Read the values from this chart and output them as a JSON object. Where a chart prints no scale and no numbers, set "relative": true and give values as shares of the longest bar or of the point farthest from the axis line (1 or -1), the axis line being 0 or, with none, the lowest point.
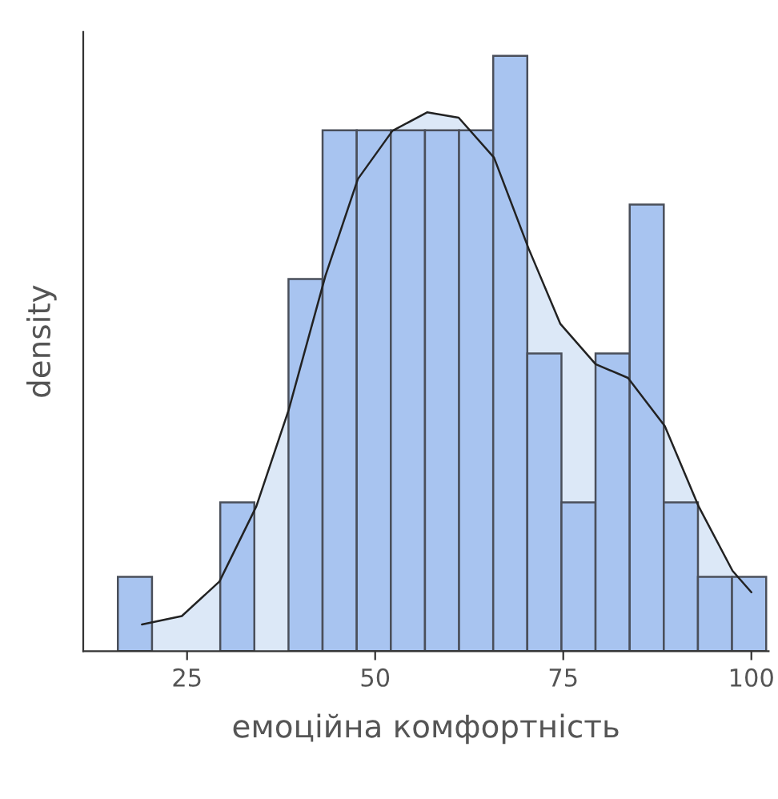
{
  "chart_data": {
    "type": "histogram",
    "xlabel": "емоційна комфортність",
    "ylabel": "density",
    "relative": true,
    "bins": [
      15.8,
      20.34,
      24.87,
      29.41,
      33.94,
      38.48,
      43.01,
      47.55,
      52.08,
      56.62,
      61.15,
      65.69,
      70.22,
      74.76,
      79.29,
      83.83,
      88.36,
      92.9,
      97.43,
      101.97
    ],
    "values": [
      0.125,
      0,
      0,
      0.25,
      0,
      0.625,
      0.875,
      0.875,
      0.875,
      0.875,
      0.875,
      1,
      0.5,
      0.25,
      0.5,
      0.75,
      0.25,
      0.125,
      0.125
    ],
    "color": "#a8c4f0",
    "series": [
      {
        "type": "area",
        "color": "#dce8f7",
        "x": [
          19.0,
          24.3,
          29.3,
          34.2,
          38.5,
          43.4,
          47.7,
          52.3,
          56.9,
          61.1,
          65.8,
          70.4,
          74.6,
          79.3,
          83.6,
          88.5,
          93.0,
          97.5,
          100.0
        ],
        "values": [
          0.045,
          0.059,
          0.117,
          0.243,
          0.405,
          0.631,
          0.793,
          0.874,
          0.905,
          0.896,
          0.829,
          0.676,
          0.55,
          0.482,
          0.459,
          0.378,
          0.243,
          0.135,
          0.099
        ]
      }
    ],
    "xlim": [
      11.2,
      102.3
    ],
    "xticks": [
      25,
      50,
      75,
      100
    ],
    "grid": false
  }
}
